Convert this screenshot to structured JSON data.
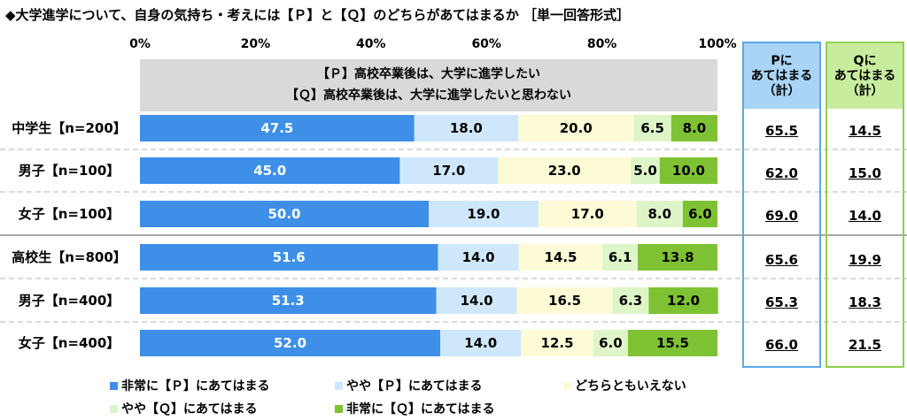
{
  "title": "◆大学進学について、自身の気持ち・考えには【Ｐ】と【Ｑ】のどちらがあてはまるか ［単一回答形式］",
  "header_lines": [
    "【Ｐ】高校卒業後は、大学に進学したい",
    "【Ｑ】高校卒業後は、大学に進学したいと思わない"
  ],
  "p_box": {
    "head": [
      "Pに",
      "あてはまる",
      "（計）"
    ],
    "color": "#a9d4f5",
    "border": "#5aa9ea"
  },
  "q_box": {
    "head": [
      "Qに",
      "あてはまる",
      "（計）"
    ],
    "color": "#c8ec9e",
    "border": "#8fd14f"
  },
  "chart_data": {
    "type": "bar",
    "orientation": "horizontal",
    "stacked": true,
    "xlim": [
      0,
      100
    ],
    "x_ticks": [
      "0%",
      "20%",
      "40%",
      "60%",
      "80%",
      "100%"
    ],
    "categories": [
      "中学生【n=200】",
      "男子【n=100】",
      "女子【n=100】",
      "高校生【n=800】",
      "男子【n=400】",
      "女子【n=400】"
    ],
    "series": [
      {
        "name": "非常に【Ｐ】にあてはまる",
        "color": "#3d8fe8",
        "values": [
          47.5,
          45.0,
          50.0,
          51.6,
          51.3,
          52.0
        ]
      },
      {
        "name": "やや【Ｐ】にあてはまる",
        "color": "#cfe7fb",
        "values": [
          18.0,
          17.0,
          19.0,
          14.0,
          14.0,
          14.0
        ]
      },
      {
        "name": "どちらともいえない",
        "color": "#fdfbd6",
        "values": [
          20.0,
          23.0,
          17.0,
          14.5,
          16.5,
          12.5
        ]
      },
      {
        "name": "やや【Ｑ】にあてはまる",
        "color": "#def5c8",
        "values": [
          6.5,
          5.0,
          8.0,
          6.1,
          6.3,
          6.0
        ]
      },
      {
        "name": "非常に【Ｑ】にあてはまる",
        "color": "#7ec234",
        "values": [
          8.0,
          10.0,
          6.0,
          13.8,
          12.0,
          15.5
        ]
      }
    ],
    "labels": [
      [
        "47.5",
        "18.0",
        "20.0",
        "6.5",
        "8.0"
      ],
      [
        "45.0",
        "17.0",
        "23.0",
        "5.0",
        "10.0"
      ],
      [
        "50.0",
        "19.0",
        "17.0",
        "8.0",
        "6.0"
      ],
      [
        "51.6",
        "14.0",
        "14.5",
        "6.1",
        "13.8"
      ],
      [
        "51.3",
        "14.0",
        "16.5",
        "6.3",
        "12.0"
      ],
      [
        "52.0",
        "14.0",
        "12.5",
        "6.0",
        "15.5"
      ]
    ],
    "p_total": [
      "65.5",
      "62.0",
      "69.0",
      "65.6",
      "65.3",
      "66.0"
    ],
    "q_total": [
      "14.5",
      "15.0",
      "14.0",
      "19.9",
      "18.3",
      "21.5"
    ],
    "grid": false,
    "legend_position": "bottom"
  }
}
